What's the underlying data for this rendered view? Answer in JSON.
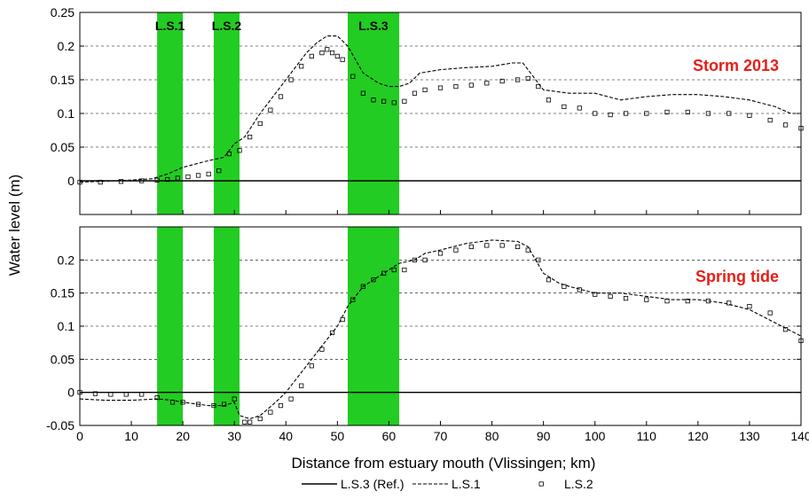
{
  "chart_data": [
    {
      "type": "line",
      "panel": "top",
      "title": "Storm 2013",
      "title_color": "#e32019",
      "xlim": [
        0,
        140
      ],
      "ylim": [
        -0.05,
        0.25
      ],
      "ylabel": "Water level (m)",
      "yticks": [
        0,
        0.05,
        0.1,
        0.15,
        0.2,
        0.25
      ],
      "ytick_labels": [
        "0",
        "0.05",
        "0.1",
        "0.15",
        "0.2",
        "0.25"
      ],
      "grid": "horizontal dashed",
      "shaded_zones": [
        {
          "label": "L.S.1",
          "x": [
            15,
            20
          ]
        },
        {
          "label": "L.S.2",
          "x": [
            26,
            31
          ]
        },
        {
          "label": "L.S.3",
          "x": [
            52,
            62
          ]
        }
      ],
      "series": [
        {
          "name": "L.S.3 (Ref.)",
          "style": "solid",
          "x": [
            0,
            140
          ],
          "y": [
            0,
            0
          ]
        },
        {
          "name": "L.S.1",
          "style": "dashed",
          "x": [
            0,
            10,
            14,
            17,
            20,
            25,
            28,
            30,
            32,
            35,
            40,
            44,
            46,
            48,
            50,
            52,
            55,
            58,
            60,
            62,
            64,
            66,
            70,
            75,
            80,
            84,
            86,
            88,
            90,
            95,
            100,
            105,
            110,
            115,
            120,
            125,
            130,
            135,
            138,
            140
          ],
          "y": [
            -0.002,
            0.001,
            0.003,
            0.01,
            0.02,
            0.03,
            0.035,
            0.055,
            0.065,
            0.1,
            0.15,
            0.19,
            0.205,
            0.215,
            0.215,
            0.2,
            0.16,
            0.145,
            0.14,
            0.14,
            0.145,
            0.16,
            0.165,
            0.168,
            0.17,
            0.175,
            0.175,
            0.155,
            0.135,
            0.13,
            0.13,
            0.12,
            0.125,
            0.128,
            0.128,
            0.125,
            0.12,
            0.11,
            0.1,
            0.1
          ]
        },
        {
          "name": "L.S.2",
          "style": "markers",
          "x": [
            0,
            4,
            8,
            12,
            15,
            17,
            19,
            21,
            23,
            25,
            27,
            29,
            31,
            33,
            35,
            37,
            39,
            41,
            43,
            45,
            47,
            48,
            49,
            50,
            51,
            53,
            55,
            57,
            59,
            61,
            63,
            65,
            67,
            70,
            73,
            76,
            79,
            82,
            85,
            87,
            89,
            91,
            94,
            97,
            100,
            103,
            106,
            110,
            114,
            118,
            122,
            126,
            130,
            134,
            137,
            140
          ],
          "y": [
            -0.002,
            -0.002,
            -0.001,
            0.0,
            0.001,
            0.002,
            0.004,
            0.006,
            0.008,
            0.01,
            0.015,
            0.04,
            0.045,
            0.065,
            0.085,
            0.105,
            0.125,
            0.15,
            0.17,
            0.185,
            0.19,
            0.195,
            0.19,
            0.185,
            0.18,
            0.155,
            0.13,
            0.12,
            0.118,
            0.116,
            0.118,
            0.13,
            0.135,
            0.138,
            0.14,
            0.142,
            0.145,
            0.148,
            0.15,
            0.152,
            0.14,
            0.12,
            0.11,
            0.108,
            0.1,
            0.098,
            0.1,
            0.1,
            0.102,
            0.102,
            0.1,
            0.1,
            0.097,
            0.09,
            0.083,
            0.078
          ]
        }
      ]
    },
    {
      "type": "line",
      "panel": "bottom",
      "title": "Spring tide",
      "title_color": "#e32019",
      "xlim": [
        0,
        140
      ],
      "ylim": [
        -0.05,
        0.25
      ],
      "xlabel": "Distance from estuary mouth (Vlissingen; km)",
      "ylabel": "Water level (m)",
      "xticks": [
        0,
        10,
        20,
        30,
        40,
        50,
        60,
        70,
        80,
        90,
        100,
        110,
        120,
        130,
        140
      ],
      "xtick_labels": [
        "0",
        "10",
        "20",
        "30",
        "40",
        "50",
        "60",
        "70",
        "80",
        "90",
        "100",
        "110",
        "120",
        "130",
        "140"
      ],
      "yticks": [
        -0.05,
        0,
        0.05,
        0.1,
        0.15,
        0.2
      ],
      "ytick_labels": [
        "-0.05",
        "0",
        "0.05",
        "0.1",
        "0.15",
        "0.2"
      ],
      "grid": "horizontal dashed",
      "shaded_zones": [
        {
          "label": "",
          "x": [
            15,
            20
          ]
        },
        {
          "label": "",
          "x": [
            26,
            31
          ]
        },
        {
          "label": "",
          "x": [
            52,
            62
          ]
        }
      ],
      "series": [
        {
          "name": "L.S.3 (Ref.)",
          "style": "solid",
          "x": [
            0,
            140
          ],
          "y": [
            0,
            0
          ]
        },
        {
          "name": "L.S.1",
          "style": "dashed",
          "x": [
            0,
            5,
            10,
            15,
            18,
            20,
            25,
            28,
            30,
            31,
            33,
            35,
            38,
            40,
            42,
            45,
            48,
            50,
            52,
            55,
            58,
            60,
            62,
            65,
            67,
            70,
            75,
            80,
            85,
            87,
            90,
            93,
            95,
            100,
            105,
            110,
            115,
            120,
            125,
            130,
            135,
            140
          ],
          "y": [
            -0.01,
            -0.012,
            -0.012,
            -0.01,
            -0.012,
            -0.015,
            -0.02,
            -0.02,
            -0.015,
            -0.035,
            -0.04,
            -0.035,
            -0.015,
            0.0,
            0.02,
            0.05,
            0.08,
            0.1,
            0.13,
            0.16,
            0.175,
            0.185,
            0.195,
            0.2,
            0.21,
            0.215,
            0.225,
            0.23,
            0.228,
            0.22,
            0.18,
            0.165,
            0.16,
            0.15,
            0.15,
            0.145,
            0.14,
            0.14,
            0.135,
            0.125,
            0.105,
            0.085
          ]
        },
        {
          "name": "L.S.2",
          "style": "markers",
          "x": [
            0,
            3,
            6,
            9,
            12,
            15,
            18,
            20,
            23,
            26,
            28,
            30,
            32,
            33,
            35,
            37,
            39,
            41,
            43,
            45,
            47,
            49,
            51,
            53,
            55,
            57,
            59,
            61,
            63,
            65,
            67,
            70,
            73,
            76,
            79,
            82,
            85,
            87,
            89,
            91,
            94,
            97,
            100,
            103,
            106,
            110,
            114,
            118,
            122,
            126,
            130,
            134,
            137,
            140
          ],
          "y": [
            0.0,
            -0.002,
            -0.003,
            -0.003,
            -0.003,
            -0.008,
            -0.015,
            -0.015,
            -0.018,
            -0.02,
            -0.018,
            -0.01,
            -0.045,
            -0.045,
            -0.04,
            -0.03,
            -0.02,
            -0.01,
            0.01,
            0.04,
            0.065,
            0.09,
            0.11,
            0.14,
            0.16,
            0.17,
            0.18,
            0.185,
            0.185,
            0.2,
            0.2,
            0.21,
            0.215,
            0.22,
            0.222,
            0.222,
            0.22,
            0.215,
            0.2,
            0.17,
            0.16,
            0.155,
            0.148,
            0.145,
            0.142,
            0.14,
            0.138,
            0.138,
            0.138,
            0.135,
            0.13,
            0.12,
            0.095,
            0.078
          ]
        }
      ]
    }
  ],
  "legend": {
    "placement": "bottom-center",
    "entries": [
      {
        "label": "L.S.3 (Ref.)",
        "style": "solid"
      },
      {
        "label": "L.S.1",
        "style": "dashed"
      },
      {
        "label": "L.S.2",
        "style": "markers"
      }
    ]
  },
  "colors": {
    "zone": "#22cc22",
    "line": "#000000",
    "title": "#e32019"
  }
}
